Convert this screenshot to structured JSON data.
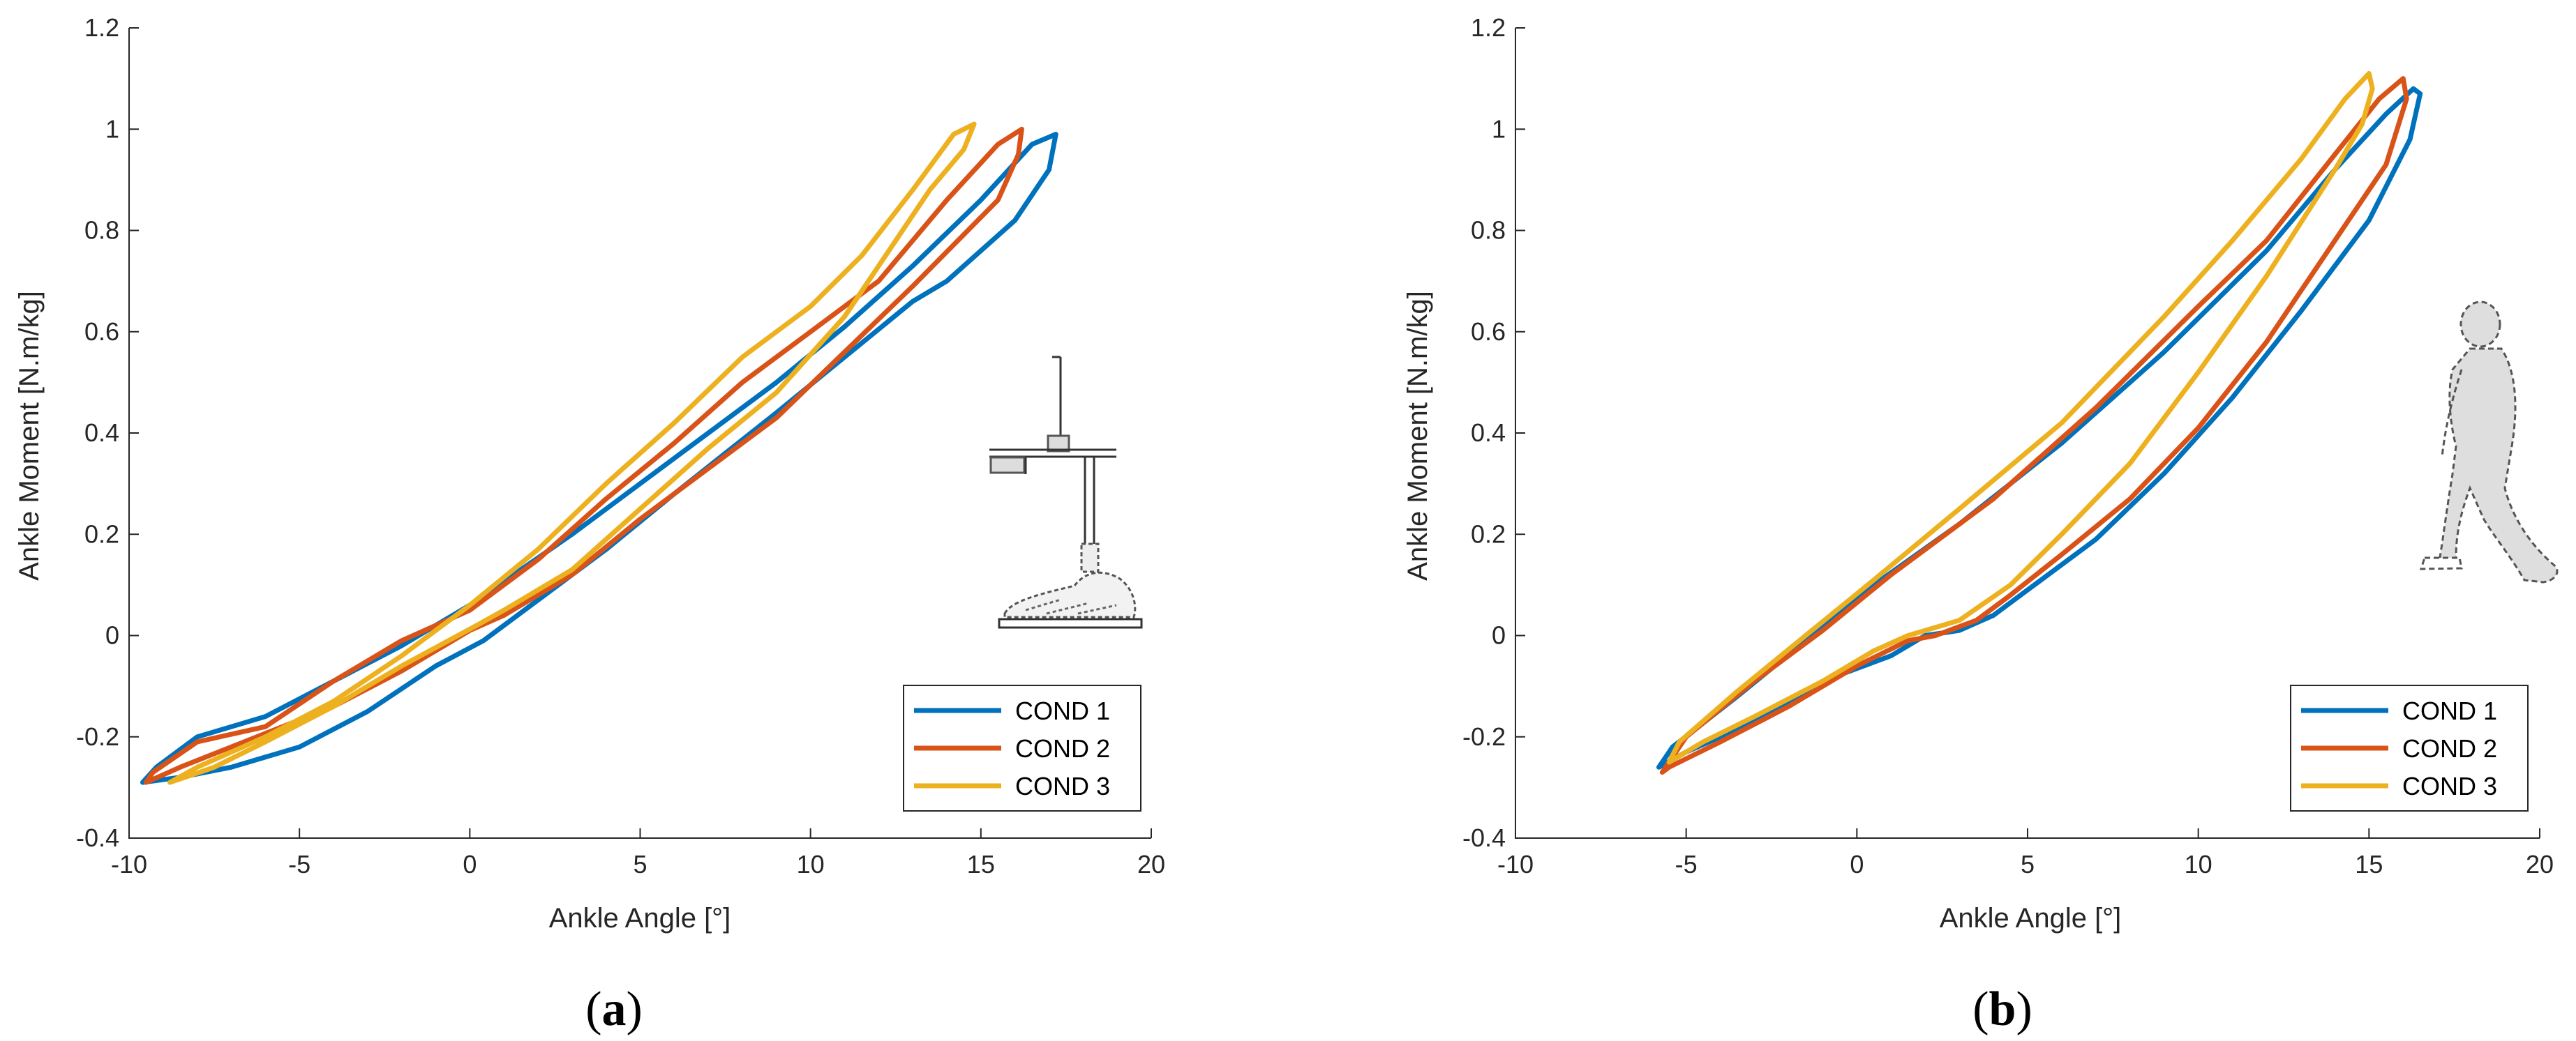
{
  "chart_data": [
    {
      "panel": "a",
      "panel_label": "a",
      "type": "line",
      "xlabel": "Ankle Angle [°]",
      "ylabel": "Ankle Moment [N.m/kg]",
      "xlim": [
        -10,
        20
      ],
      "ylim": [
        -0.4,
        1.2
      ],
      "xticks": [
        -10,
        -5,
        0,
        5,
        10,
        15,
        20
      ],
      "yticks": [
        -0.4,
        -0.2,
        0,
        0.2,
        0.4,
        0.6,
        0.8,
        1,
        1.2
      ],
      "xtick_labels": [
        "-10",
        "-5",
        "0",
        "5",
        "10",
        "15",
        "20"
      ],
      "ytick_labels": [
        "-0.4",
        "-0.2",
        "0",
        "0.2",
        "0.4",
        "0.6",
        "0.8",
        "1",
        "1.2"
      ],
      "inset_icon": "prosthetic-foot-test-rig-icon",
      "legend": [
        "COND 1",
        "COND 2",
        "COND 3"
      ],
      "legend_position": "bottom-right",
      "series": [
        {
          "name": "COND 1",
          "color": "#0072BD",
          "points": [
            [
              0.4,
              -0.01
            ],
            [
              -1,
              -0.06
            ],
            [
              -3,
              -0.15
            ],
            [
              -5,
              -0.22
            ],
            [
              -7,
              -0.26
            ],
            [
              -8.5,
              -0.28
            ],
            [
              -9.6,
              -0.29
            ],
            [
              -9.2,
              -0.26
            ],
            [
              -8,
              -0.2
            ],
            [
              -6,
              -0.16
            ],
            [
              -4,
              -0.09
            ],
            [
              -2,
              -0.02
            ],
            [
              0,
              0.06
            ],
            [
              3,
              0.2
            ],
            [
              6,
              0.35
            ],
            [
              9,
              0.5
            ],
            [
              11,
              0.61
            ],
            [
              13,
              0.73
            ],
            [
              15,
              0.86
            ],
            [
              16.5,
              0.97
            ],
            [
              17.2,
              0.99
            ],
            [
              17,
              0.92
            ],
            [
              16,
              0.82
            ],
            [
              14,
              0.7
            ],
            [
              13,
              0.66
            ],
            [
              11,
              0.55
            ],
            [
              9,
              0.44
            ],
            [
              6,
              0.28
            ],
            [
              4,
              0.17
            ],
            [
              2,
              0.07
            ],
            [
              0.4,
              -0.01
            ]
          ]
        },
        {
          "name": "COND 2",
          "color": "#D95319",
          "points": [
            [
              0,
              0.01
            ],
            [
              -2,
              -0.07
            ],
            [
              -4,
              -0.14
            ],
            [
              -5.5,
              -0.18
            ],
            [
              -7,
              -0.22
            ],
            [
              -8.5,
              -0.26
            ],
            [
              -9.5,
              -0.29
            ],
            [
              -9.3,
              -0.27
            ],
            [
              -8,
              -0.21
            ],
            [
              -6,
              -0.18
            ],
            [
              -4,
              -0.09
            ],
            [
              -2,
              -0.01
            ],
            [
              0,
              0.05
            ],
            [
              2,
              0.15
            ],
            [
              4,
              0.27
            ],
            [
              6,
              0.38
            ],
            [
              8,
              0.5
            ],
            [
              10,
              0.6
            ],
            [
              12,
              0.7
            ],
            [
              14,
              0.86
            ],
            [
              15.5,
              0.97
            ],
            [
              16.2,
              1.0
            ],
            [
              16.1,
              0.95
            ],
            [
              15.5,
              0.86
            ],
            [
              13,
              0.69
            ],
            [
              11,
              0.56
            ],
            [
              9,
              0.43
            ],
            [
              7,
              0.33
            ],
            [
              5,
              0.23
            ],
            [
              3,
              0.12
            ],
            [
              1,
              0.04
            ],
            [
              0,
              0.01
            ]
          ]
        },
        {
          "name": "COND 3",
          "color": "#EDB120",
          "points": [
            [
              0.2,
              0.02
            ],
            [
              -2,
              -0.06
            ],
            [
              -4,
              -0.14
            ],
            [
              -6,
              -0.21
            ],
            [
              -7.5,
              -0.26
            ],
            [
              -8.8,
              -0.29
            ],
            [
              -8,
              -0.26
            ],
            [
              -6,
              -0.2
            ],
            [
              -4,
              -0.13
            ],
            [
              -2,
              -0.04
            ],
            [
              0,
              0.06
            ],
            [
              2,
              0.17
            ],
            [
              4,
              0.3
            ],
            [
              6,
              0.42
            ],
            [
              8,
              0.55
            ],
            [
              10,
              0.65
            ],
            [
              11.5,
              0.75
            ],
            [
              13,
              0.88
            ],
            [
              14.2,
              0.99
            ],
            [
              14.8,
              1.01
            ],
            [
              14.5,
              0.96
            ],
            [
              13.5,
              0.88
            ],
            [
              12.5,
              0.78
            ],
            [
              11,
              0.63
            ],
            [
              9,
              0.48
            ],
            [
              7,
              0.37
            ],
            [
              5,
              0.25
            ],
            [
              3,
              0.13
            ],
            [
              1,
              0.05
            ],
            [
              0.2,
              0.02
            ]
          ]
        }
      ]
    },
    {
      "panel": "b",
      "panel_label": "b",
      "type": "line",
      "xlabel": "Ankle Angle [°]",
      "ylabel": "Ankle Moment [N.m/kg]",
      "xlim": [
        -10,
        20
      ],
      "ylim": [
        -0.4,
        1.2
      ],
      "xticks": [
        -10,
        -5,
        0,
        5,
        10,
        15,
        20
      ],
      "yticks": [
        -0.4,
        -0.2,
        0,
        0.2,
        0.4,
        0.6,
        0.8,
        1,
        1.2
      ],
      "xtick_labels": [
        "-10",
        "-5",
        "0",
        "5",
        "10",
        "15",
        "20"
      ],
      "ytick_labels": [
        "-0.4",
        "-0.2",
        "0",
        "0.2",
        "0.4",
        "0.6",
        "0.8",
        "1",
        "1.2"
      ],
      "inset_icon": "walking-person-with-prosthesis-icon",
      "legend": [
        "COND 1",
        "COND 2",
        "COND 3"
      ],
      "legend_position": "bottom-right",
      "series": [
        {
          "name": "COND 1",
          "color": "#0072BD",
          "points": [
            [
              3,
              0.01
            ],
            [
              2,
              0.0
            ],
            [
              1,
              -0.04
            ],
            [
              -1,
              -0.09
            ],
            [
              -3,
              -0.17
            ],
            [
              -5,
              -0.23
            ],
            [
              -5.8,
              -0.26
            ],
            [
              -5.4,
              -0.22
            ],
            [
              -3.5,
              -0.12
            ],
            [
              -1.5,
              -0.01
            ],
            [
              0.5,
              0.1
            ],
            [
              3,
              0.22
            ],
            [
              6,
              0.38
            ],
            [
              9,
              0.56
            ],
            [
              12,
              0.76
            ],
            [
              14,
              0.92
            ],
            [
              15.5,
              1.03
            ],
            [
              16.3,
              1.08
            ],
            [
              16.5,
              1.07
            ],
            [
              16.2,
              0.98
            ],
            [
              15,
              0.82
            ],
            [
              13,
              0.64
            ],
            [
              11,
              0.47
            ],
            [
              9,
              0.32
            ],
            [
              7,
              0.19
            ],
            [
              5,
              0.09
            ],
            [
              4,
              0.04
            ],
            [
              3,
              0.01
            ]
          ]
        },
        {
          "name": "COND 2",
          "color": "#D95319",
          "points": [
            [
              2.3,
              0.0
            ],
            [
              1.5,
              -0.01
            ],
            [
              0,
              -0.06
            ],
            [
              -2,
              -0.14
            ],
            [
              -4,
              -0.21
            ],
            [
              -5.5,
              -0.26
            ],
            [
              -5.7,
              -0.27
            ],
            [
              -5,
              -0.2
            ],
            [
              -3,
              -0.09
            ],
            [
              -1,
              0.01
            ],
            [
              1,
              0.12
            ],
            [
              4,
              0.27
            ],
            [
              7,
              0.45
            ],
            [
              10,
              0.65
            ],
            [
              12,
              0.78
            ],
            [
              14,
              0.95
            ],
            [
              15.3,
              1.06
            ],
            [
              16,
              1.1
            ],
            [
              16.1,
              1.06
            ],
            [
              15.5,
              0.93
            ],
            [
              14,
              0.78
            ],
            [
              12,
              0.58
            ],
            [
              10,
              0.41
            ],
            [
              8,
              0.27
            ],
            [
              6,
              0.16
            ],
            [
              4.5,
              0.08
            ],
            [
              3.5,
              0.03
            ],
            [
              2.3,
              0.0
            ]
          ]
        },
        {
          "name": "COND 3",
          "color": "#EDB120",
          "points": [
            [
              1.5,
              0.0
            ],
            [
              0.5,
              -0.03
            ],
            [
              -1,
              -0.09
            ],
            [
              -3,
              -0.16
            ],
            [
              -4.5,
              -0.21
            ],
            [
              -5.5,
              -0.25
            ],
            [
              -5.2,
              -0.21
            ],
            [
              -3.5,
              -0.11
            ],
            [
              -1.5,
              0.0
            ],
            [
              0.5,
              0.11
            ],
            [
              3,
              0.25
            ],
            [
              6,
              0.42
            ],
            [
              9,
              0.63
            ],
            [
              11,
              0.78
            ],
            [
              13,
              0.94
            ],
            [
              14.3,
              1.06
            ],
            [
              15,
              1.11
            ],
            [
              15.1,
              1.08
            ],
            [
              14.8,
              1.01
            ],
            [
              14,
              0.92
            ],
            [
              12,
              0.71
            ],
            [
              10,
              0.52
            ],
            [
              8,
              0.34
            ],
            [
              6,
              0.2
            ],
            [
              4.5,
              0.1
            ],
            [
              3,
              0.03
            ],
            [
              1.5,
              0.0
            ]
          ]
        }
      ]
    }
  ]
}
